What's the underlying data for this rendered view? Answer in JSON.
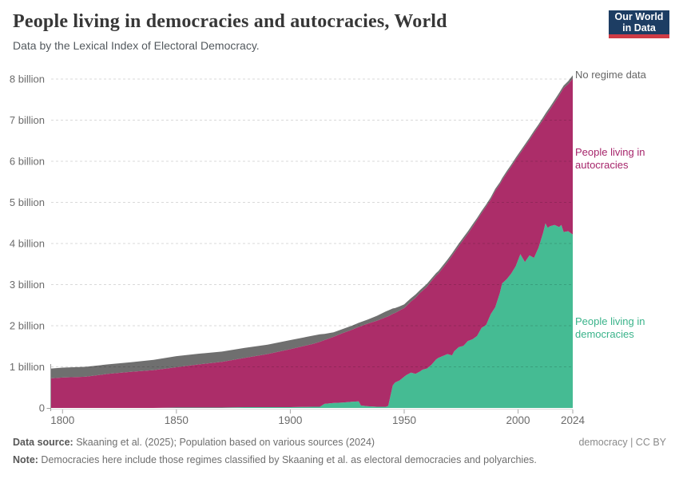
{
  "header": {
    "title": "People living in democracies and autocracies, World",
    "subtitle": "Data by the Lexical Index of Electoral Democracy.",
    "logo": {
      "line1": "Our World",
      "line2": "in Data"
    }
  },
  "chart_data": {
    "type": "area",
    "stacked": true,
    "title": "People living in democracies and autocracies, World",
    "unit": "billion people",
    "xlim": [
      1795,
      2024
    ],
    "ylim": [
      0,
      8.2
    ],
    "grid": "dashed horizontal",
    "legend_position": "right",
    "x": [
      1795,
      1800,
      1810,
      1820,
      1830,
      1840,
      1850,
      1860,
      1870,
      1880,
      1890,
      1900,
      1910,
      1913,
      1915,
      1919,
      1923,
      1927,
      1930,
      1931,
      1934,
      1938,
      1942,
      1943,
      1945,
      1946,
      1948,
      1950,
      1951,
      1953,
      1955,
      1957,
      1958,
      1960,
      1962,
      1964,
      1965,
      1969,
      1971,
      1972,
      1974,
      1976,
      1978,
      1980,
      1982,
      1984,
      1986,
      1988,
      1990,
      1992,
      1993,
      1995,
      1997,
      1999,
      2001,
      2003,
      2005,
      2007,
      2009,
      2011,
      2012,
      2013,
      2014,
      2016,
      2018,
      2019,
      2020,
      2022,
      2024
    ],
    "series": [
      {
        "name": "People living in democracies",
        "color": "#45BB93",
        "values": [
          0,
          0,
          0,
          0,
          0,
          0,
          0.01,
          0.01,
          0.01,
          0.02,
          0.02,
          0.02,
          0.03,
          0.03,
          0.1,
          0.12,
          0.13,
          0.15,
          0.16,
          0.06,
          0.04,
          0.03,
          0.03,
          0.05,
          0.55,
          0.62,
          0.67,
          0.76,
          0.8,
          0.86,
          0.83,
          0.89,
          0.93,
          0.96,
          1.05,
          1.18,
          1.22,
          1.31,
          1.28,
          1.38,
          1.48,
          1.51,
          1.63,
          1.67,
          1.75,
          1.95,
          2.02,
          2.28,
          2.45,
          2.8,
          3.03,
          3.13,
          3.27,
          3.45,
          3.74,
          3.55,
          3.71,
          3.65,
          3.9,
          4.26,
          4.49,
          4.38,
          4.42,
          4.45,
          4.4,
          4.45,
          4.28,
          4.3,
          4.22
        ]
      },
      {
        "name": "People living in autocracies",
        "color": "#AC2D69",
        "values": [
          0.72,
          0.74,
          0.76,
          0.83,
          0.88,
          0.92,
          0.98,
          1.05,
          1.11,
          1.2,
          1.29,
          1.41,
          1.53,
          1.58,
          1.55,
          1.61,
          1.69,
          1.75,
          1.81,
          1.93,
          2.01,
          2.09,
          2.18,
          2.18,
          1.74,
          1.69,
          1.7,
          1.67,
          1.68,
          1.73,
          1.85,
          1.91,
          1.92,
          1.99,
          2.04,
          2.04,
          2.05,
          2.24,
          2.42,
          2.4,
          2.46,
          2.58,
          2.61,
          2.73,
          2.82,
          2.79,
          2.88,
          2.79,
          2.83,
          2.64,
          2.51,
          2.58,
          2.6,
          2.59,
          2.46,
          2.81,
          2.81,
          3.04,
          2.95,
          2.75,
          2.61,
          2.8,
          2.84,
          2.98,
          3.2,
          3.24,
          3.5,
          3.58,
          3.79
        ]
      },
      {
        "name": "No regime data",
        "color": "#6F6F6F",
        "values": [
          0.24,
          0.24,
          0.24,
          0.23,
          0.23,
          0.25,
          0.27,
          0.26,
          0.25,
          0.24,
          0.23,
          0.22,
          0.2,
          0.18,
          0.15,
          0.11,
          0.1,
          0.1,
          0.1,
          0.1,
          0.1,
          0.12,
          0.14,
          0.14,
          0.13,
          0.12,
          0.1,
          0.09,
          0.09,
          0.08,
          0.08,
          0.07,
          0.07,
          0.07,
          0.06,
          0.06,
          0.06,
          0.06,
          0.06,
          0.06,
          0.06,
          0.06,
          0.06,
          0.06,
          0.05,
          0.05,
          0.05,
          0.05,
          0.05,
          0.05,
          0.05,
          0.05,
          0.05,
          0.05,
          0.05,
          0.05,
          0.05,
          0.05,
          0.05,
          0.06,
          0.06,
          0.06,
          0.06,
          0.06,
          0.06,
          0.06,
          0.06,
          0.07,
          0.08
        ]
      }
    ],
    "y_ticks": [
      {
        "value": 0,
        "label": "0"
      },
      {
        "value": 1,
        "label": "1 billion"
      },
      {
        "value": 2,
        "label": "2 billion"
      },
      {
        "value": 3,
        "label": "3 billion"
      },
      {
        "value": 4,
        "label": "4 billion"
      },
      {
        "value": 5,
        "label": "5 billion"
      },
      {
        "value": 6,
        "label": "6 billion"
      },
      {
        "value": 7,
        "label": "7 billion"
      },
      {
        "value": 8,
        "label": "8 billion"
      }
    ],
    "x_ticks": [
      {
        "value": 1800,
        "label": "1800"
      },
      {
        "value": 1850,
        "label": "1850"
      },
      {
        "value": 1900,
        "label": "1900"
      },
      {
        "value": 1950,
        "label": "1950"
      },
      {
        "value": 2000,
        "label": "2000"
      },
      {
        "value": 2024,
        "label": "2024"
      }
    ]
  },
  "legend": {
    "no_regime": {
      "lines": [
        "No regime data",
        ""
      ],
      "color": "#666666"
    },
    "autocracies": {
      "lines": [
        "People living in",
        "autocracies"
      ],
      "color": "#A6256B"
    },
    "democracies": {
      "lines": [
        "People living in",
        "democracies"
      ],
      "color": "#3AB38A"
    }
  },
  "footer": {
    "source_label": "Data source:",
    "source_text": " Skaaning et al. (2025); Population based on various sources (2024)",
    "note_label": "Note:",
    "note_text": " Democracies here include those regimes classified by Skaaning et al. as electoral democracies and polyarchies.",
    "rights": "democracy | CC BY"
  }
}
